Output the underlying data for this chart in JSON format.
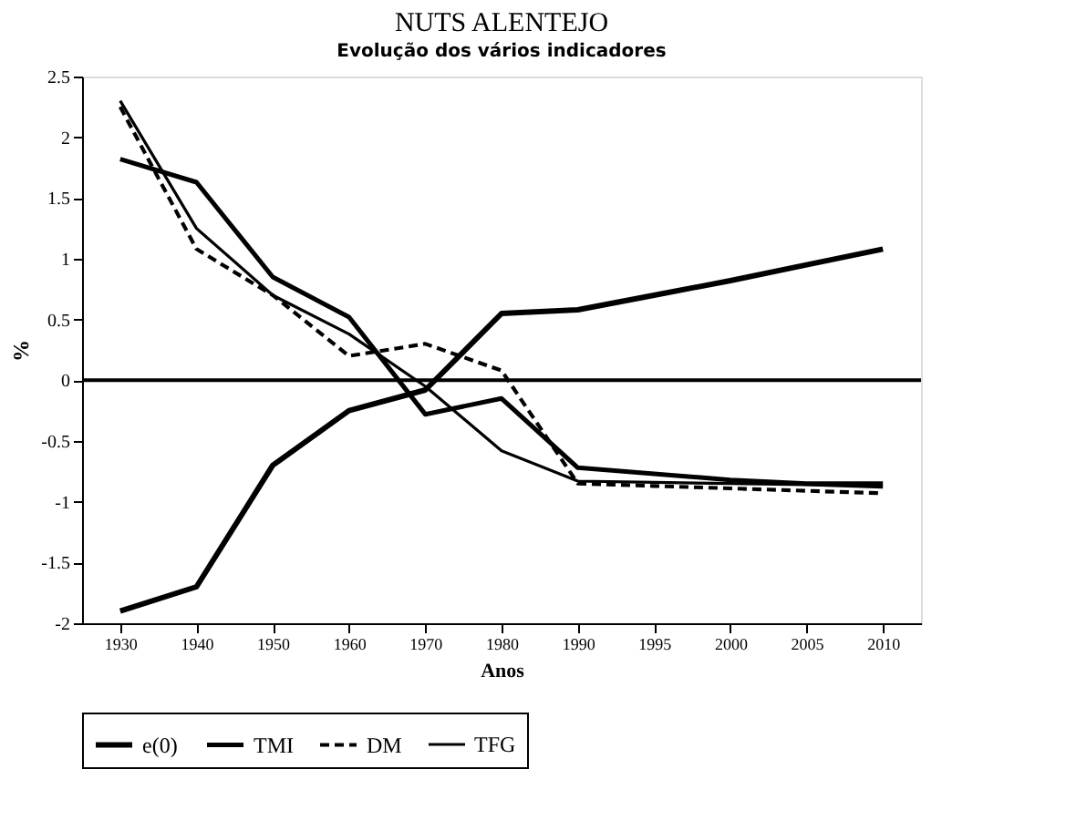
{
  "chart_data": {
    "type": "line",
    "title": "NUTS ALENTEJO",
    "subtitle": "Evolução dos vários indicadores",
    "xlabel": "Anos",
    "ylabel": "%",
    "categories": [
      "1930",
      "1940",
      "1950",
      "1960",
      "1970",
      "1980",
      "1990",
      "1995",
      "2000",
      "2005",
      "2010"
    ],
    "ylim": [
      -2,
      2.5
    ],
    "yticks": [
      -2,
      -1.5,
      -1,
      -0.5,
      0,
      0.5,
      1,
      1.5,
      2,
      2.5
    ],
    "grid": false,
    "legend": "bottom",
    "marker": "none",
    "ref_lines": [
      {
        "axis": "y",
        "value": 0,
        "color": "#000000",
        "line_style": "solid"
      }
    ],
    "series": [
      {
        "name": "e(0)",
        "color": "#000000",
        "line_style": "solid",
        "values": [
          -1.9,
          -1.7,
          -0.7,
          -0.25,
          -0.08,
          0.55,
          0.58,
          0.7,
          0.82,
          0.95,
          1.08
        ]
      },
      {
        "name": "TMI",
        "color": "#000000",
        "line_style": "solid",
        "values": [
          1.82,
          1.63,
          0.85,
          0.52,
          -0.28,
          -0.15,
          -0.72,
          -0.77,
          -0.82,
          -0.85,
          -0.85
        ]
      },
      {
        "name": "DM",
        "color": "#000000",
        "line_style": "dashed",
        "values": [
          2.25,
          1.08,
          0.7,
          0.2,
          0.3,
          0.08,
          -0.85,
          -0.87,
          -0.89,
          -0.91,
          -0.93
        ]
      },
      {
        "name": "TFG",
        "color": "#000000",
        "line_style": "solid",
        "values": [
          2.3,
          1.25,
          0.7,
          0.38,
          -0.05,
          -0.58,
          -0.83,
          -0.84,
          -0.85,
          -0.86,
          -0.88
        ]
      }
    ]
  }
}
